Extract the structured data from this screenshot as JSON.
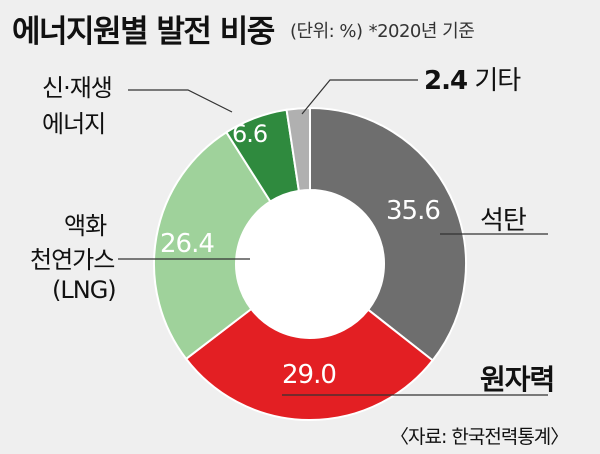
{
  "header": {
    "title": "에너지원별 발전 비중",
    "unit_note": "(단위: %)",
    "year_note": "*2020년 기준"
  },
  "source": "〈자료: 한국전력통계〉",
  "chart_data": {
    "type": "pie",
    "title": "에너지원별 발전 비중",
    "unit": "%",
    "note": "*2020년 기준",
    "categories": [
      "석탄",
      "원자력",
      "액화 천연가스 (LNG)",
      "신·재생 에너지",
      "기타"
    ],
    "values": [
      35.6,
      29.0,
      26.4,
      6.6,
      2.4
    ],
    "value_labels": [
      "35.6",
      "29.0",
      "26.4",
      "6.6",
      "2.4"
    ],
    "colors": [
      "#6e6e6e",
      "#e31f23",
      "#9fd29b",
      "#2f8a3e",
      "#b0b0b0"
    ],
    "label_lines": {
      "coal": [
        "석탄"
      ],
      "nuclear": [
        "원자력"
      ],
      "lng": [
        "액화",
        "천연가스",
        "(LNG)"
      ],
      "renewable": [
        "신·재생",
        "에너지"
      ],
      "other": [
        "기타"
      ]
    },
    "hole": "donut",
    "start": "top, clockwise"
  }
}
